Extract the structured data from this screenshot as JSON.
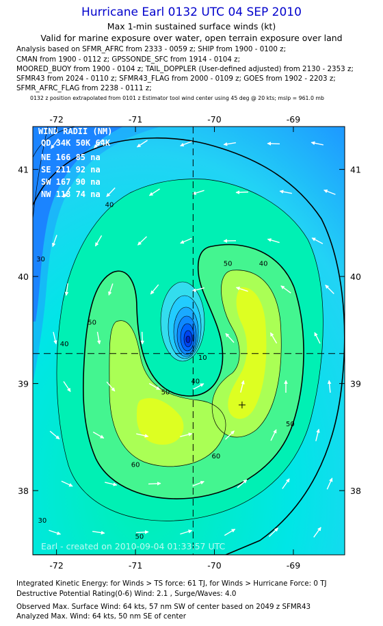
{
  "header": {
    "title": "Hurricane Earl 0132 UTC 04 SEP 2010",
    "subtitle1": "Max 1-min sustained surface winds (kt)",
    "subtitle2": "Valid for marine exposure over water, open terrain exposure over land",
    "source_lines": [
      "Analysis based on SFMR_AFRC from 2333 - 0059 z; SHIP from 1900 - 0100 z;",
      "CMAN from 1900 - 0112 z; GPSSONDE_SFC from 1914 - 0104 z;",
      "MOORED_BUOY from 1900 - 0104 z; TAIL_DOPPLER (User-defined adjusted) from 2130 - 2353 z;",
      "SFMR43 from 2024 - 0110 z; SFMR43_FLAG from 2000 - 0109 z; GOES from 1902 - 2203 z;",
      "SFMR_AFRC_FLAG from 2238 - 0111 z;"
    ],
    "extrapolation_note": "0132 z position extrapolated from 0101 z Estimator tool wind center using 45 deg @ 20 kts; mslp = 961.0 mb"
  },
  "wind_radii": {
    "title": "WIND RADII (NM)",
    "header_row": "QD 34K 50K 64K",
    "rows": [
      "NE 166  85  na",
      "SE 211  92  na",
      "SW 167  90  na",
      "NW 118  74  na"
    ]
  },
  "watermark": "Earl - created on 2010-09-04 01:33:57 UTC",
  "footer": {
    "line1": "Integrated Kinetic Energy:  for Winds > TS force: 61 TJ,  for Winds > Hurricane Force: 0 TJ",
    "line2": "Destructive Potential Rating(0-6)   Wind: 2.1 , Surge/Waves: 4.0",
    "line3": "Observed Max. Surface Wind: 64 kts, 57 nm SW of center based on 2049 z SFMR43",
    "line4": "Analyzed Max. Wind: 64 kts, 50 nm SE of center"
  },
  "chart_data": {
    "type": "contour",
    "title": "Hurricane Earl 0132 UTC 04 SEP 2010",
    "units": "kt",
    "xaxis": {
      "label": "",
      "range": [
        -72.3,
        -68.35
      ],
      "ticks": [
        -72,
        -71,
        -70,
        -69
      ],
      "tick_labels": [
        "-72",
        "-71",
        "-70",
        "-69"
      ]
    },
    "yaxis": {
      "label": "",
      "range": [
        37.4,
        41.4
      ],
      "ticks": [
        38,
        39,
        40,
        41
      ],
      "tick_labels": [
        "38",
        "39",
        "40",
        "41"
      ]
    },
    "storm_center": {
      "lon": -70.27,
      "lat": 39.28
    },
    "max_wind_marker": {
      "lon": -69.65,
      "lat": 38.8
    },
    "contour_levels": [
      0,
      10,
      20,
      30,
      40,
      50,
      60
    ],
    "bold_levels": [
      30,
      50
    ],
    "contour_labels": [
      {
        "text": "30",
        "lon": -72.2,
        "lat": 40.14
      },
      {
        "text": "30",
        "lon": -72.18,
        "lat": 37.7
      },
      {
        "text": "40",
        "lon": -71.33,
        "lat": 40.65
      },
      {
        "text": "40",
        "lon": -69.38,
        "lat": 40.1
      },
      {
        "text": "40",
        "lon": -71.9,
        "lat": 39.35
      },
      {
        "text": "40",
        "lon": -70.24,
        "lat": 39.0
      },
      {
        "text": "50",
        "lon": -69.83,
        "lat": 40.1
      },
      {
        "text": "50",
        "lon": -71.55,
        "lat": 39.55
      },
      {
        "text": "50",
        "lon": -70.62,
        "lat": 38.9
      },
      {
        "text": "50",
        "lon": -69.04,
        "lat": 38.6
      },
      {
        "text": "50",
        "lon": -70.95,
        "lat": 37.55
      },
      {
        "text": "60",
        "lon": -71.0,
        "lat": 38.22
      },
      {
        "text": "60",
        "lon": -69.98,
        "lat": 38.3
      },
      {
        "text": "10",
        "lon": -70.15,
        "lat": 39.22
      }
    ],
    "colors": {
      "bands": [
        "#0033ff",
        "#0066ff",
        "#0099ff",
        "#33ccff",
        "#00e6ee",
        "#00f0b4",
        "#44f590",
        "#aaff55",
        "#ddff22"
      ],
      "text_blue": "#0000cc"
    },
    "wind_vectors": "uniform grid of white arrows showing cyclonic (counter-clockwise) surface flow"
  }
}
